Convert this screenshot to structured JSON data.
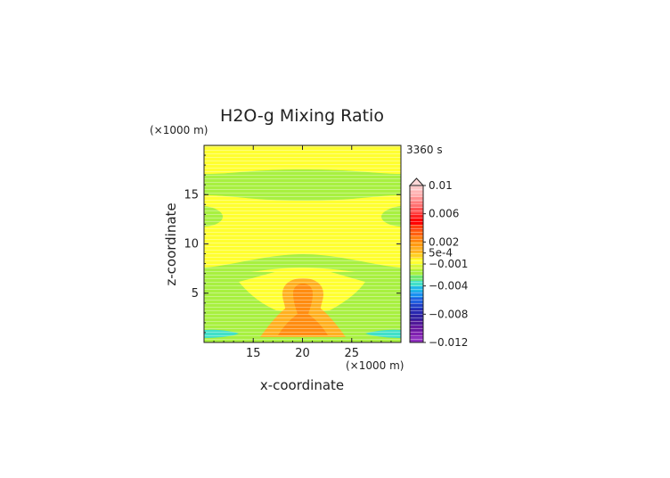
{
  "chart_data": {
    "type": "heatmap",
    "title": "H2O-g Mixing Ratio",
    "time_label": "3360 s",
    "xlabel": "x-coordinate",
    "ylabel": "z-coordinate",
    "x_unit": "(×1000 m)",
    "y_unit": "(×1000 m)",
    "xlim": [
      10,
      30
    ],
    "ylim": [
      0,
      20
    ],
    "x_ticks": [
      "15",
      "20",
      "25"
    ],
    "y_ticks": [
      "5",
      "10",
      "15"
    ],
    "colorbar": {
      "labels": [
        "0.01",
        "0.006",
        "0.002",
        "5e-4",
        "−0.001",
        "−0.004",
        "−0.008",
        "−0.012"
      ],
      "min": -0.012,
      "max": 0.01
    },
    "regions": [
      {
        "name": "background",
        "level": 0.0003,
        "color": "#ffff30"
      },
      {
        "name": "upper-band",
        "z_range": [
          15.5,
          17.2
        ],
        "level": -0.0007,
        "color": "#a8f040"
      },
      {
        "name": "middle-band",
        "z_range": [
          8.2,
          9.8
        ],
        "level": -0.0007,
        "color": "#a8f040"
      },
      {
        "name": "lower-region",
        "z_range": [
          0,
          8.5
        ],
        "level": -0.0007,
        "color": "#a8f040"
      },
      {
        "name": "core-light-orange",
        "level": 0.0015,
        "color": "#ffb020"
      },
      {
        "name": "core-orange",
        "level": 0.0025,
        "color": "#ff8c10"
      },
      {
        "name": "surface-band",
        "z_range": [
          0,
          1.3
        ],
        "level": -0.0025,
        "color": "#40e0c8"
      }
    ]
  }
}
